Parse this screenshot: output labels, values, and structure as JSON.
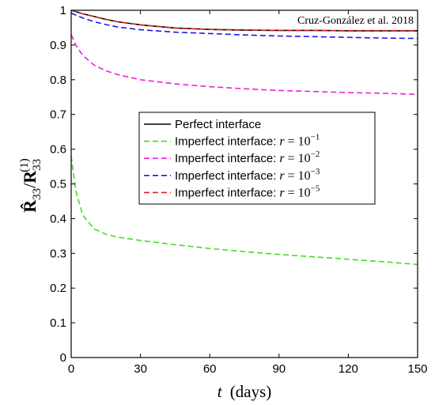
{
  "chart_data": {
    "type": "line",
    "annotation": "Cruz-González et al. 2018",
    "xlabel_var": "t",
    "xlabel_unit": "(days)",
    "ylabel": "R̂33/R33(1)",
    "xlim": [
      0,
      150
    ],
    "ylim": [
      0,
      1
    ],
    "x_ticks": [
      0,
      30,
      60,
      90,
      120,
      150
    ],
    "y_ticks": [
      0,
      0.1,
      0.2,
      0.3,
      0.4,
      0.5,
      0.6,
      0.7,
      0.8,
      0.9,
      1
    ],
    "grid": false,
    "legend_position": "center",
    "x": [
      0,
      2,
      5,
      10,
      15,
      20,
      30,
      45,
      60,
      75,
      90,
      105,
      120,
      135,
      150
    ],
    "series": [
      {
        "name": "Perfect interface",
        "legend_text": "Perfect interface",
        "legend_math": "",
        "legend_exp": "",
        "color": "#000000",
        "dash": "solid",
        "values": [
          1.0,
          0.996,
          0.99,
          0.982,
          0.974,
          0.967,
          0.958,
          0.949,
          0.945,
          0.943,
          0.942,
          0.942,
          0.941,
          0.941,
          0.941
        ]
      },
      {
        "name": "Imperfect interface: r = 10^-1",
        "legend_text": "Imperfect interface:",
        "legend_math": "r = 10",
        "legend_exp": "−1",
        "color": "#44dd22",
        "dash": "dashed",
        "values": [
          0.58,
          0.48,
          0.41,
          0.37,
          0.355,
          0.347,
          0.337,
          0.325,
          0.314,
          0.305,
          0.297,
          0.29,
          0.283,
          0.276,
          0.268
        ]
      },
      {
        "name": "Imperfect interface: r = 10^-2",
        "legend_text": "Imperfect interface:",
        "legend_math": "r = 10",
        "legend_exp": "−2",
        "color": "#ee22dd",
        "dash": "dashed",
        "values": [
          0.93,
          0.9,
          0.87,
          0.842,
          0.826,
          0.815,
          0.8,
          0.788,
          0.78,
          0.774,
          0.769,
          0.766,
          0.763,
          0.761,
          0.758
        ]
      },
      {
        "name": "Imperfect interface: r = 10^-3",
        "legend_text": "Imperfect interface:",
        "legend_math": "r = 10",
        "legend_exp": "−3",
        "color": "#1a1aee",
        "dash": "dashed",
        "values": [
          0.992,
          0.986,
          0.978,
          0.967,
          0.959,
          0.952,
          0.944,
          0.937,
          0.933,
          0.929,
          0.926,
          0.924,
          0.922,
          0.92,
          0.919
        ]
      },
      {
        "name": "Imperfect interface: r = 10^-5",
        "legend_text": "Imperfect interface:",
        "legend_math": "r = 10",
        "legend_exp": "−5",
        "color": "#dd2222",
        "dash": "dashed",
        "values": [
          1.0,
          0.996,
          0.99,
          0.982,
          0.974,
          0.967,
          0.958,
          0.949,
          0.945,
          0.943,
          0.942,
          0.942,
          0.941,
          0.941,
          0.941
        ]
      }
    ]
  }
}
